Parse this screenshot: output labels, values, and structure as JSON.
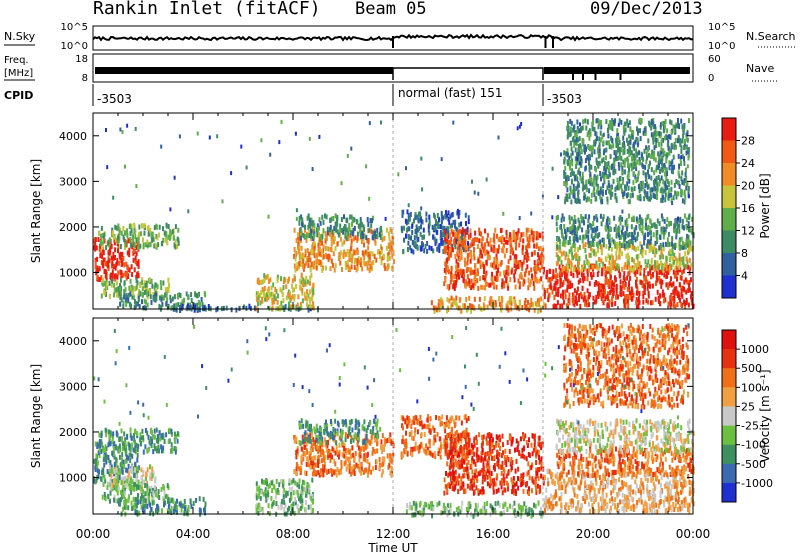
{
  "header": {
    "title": "Rankin Inlet (fitACF)",
    "beam": "Beam 05",
    "date": "09/Dec/2013"
  },
  "strip_nsky": {
    "left_label": "N.Sky",
    "left_ticks": [
      "10^5",
      "10^0"
    ],
    "right_ticks": [
      "10^5",
      "10^0"
    ],
    "right_label": "N.Search"
  },
  "strip_freq": {
    "left_label": "Freq.",
    "left_unit": "[MHz]",
    "left_ticks": [
      "8",
      "18"
    ],
    "right_ticks": [
      "60",
      "0"
    ],
    "right_label": "Nave"
  },
  "cpid": {
    "label": "CPID",
    "segments": [
      "-3503",
      "normal (fast) 151",
      "-3503"
    ],
    "segment_hours": [
      [
        0,
        12
      ],
      [
        12,
        18
      ],
      [
        18,
        24
      ]
    ]
  },
  "colors": {
    "power": [
      "#2030d0",
      "#3060a0",
      "#3e8a64",
      "#5fae4a",
      "#c6c43a",
      "#f08c26",
      "#f05a14",
      "#e81c10"
    ],
    "velocity": [
      "#2030d0",
      "#3a6ab0",
      "#3f9060",
      "#6cc040",
      "#c8c8c8",
      "#f0a040",
      "#f07018",
      "#e83010",
      "#e01010"
    ]
  },
  "chart_data": [
    {
      "type": "heatmap",
      "name": "Power",
      "xlabel": "",
      "ylabel": "Slant Range [km]",
      "xlim": [
        0,
        24
      ],
      "ylim": [
        200,
        4500
      ],
      "x_ticks": [
        "00:00",
        "04:00",
        "08:00",
        "12:00",
        "16:00",
        "20:00",
        "00:00"
      ],
      "y_ticks": [
        1000,
        2000,
        3000,
        4000
      ],
      "colorbar": {
        "label": "Power [dB]",
        "ticks": [
          "4",
          "8",
          "12",
          "16",
          "20",
          "24",
          "28"
        ]
      },
      "regions": [
        {
          "t0": 0.0,
          "t1": 1.8,
          "r0": 900,
          "r1": 1800,
          "level": 7
        },
        {
          "t0": 0.2,
          "t1": 3.4,
          "r0": 1600,
          "r1": 2100,
          "level": 3
        },
        {
          "t0": 0.3,
          "t1": 3.0,
          "r0": 500,
          "r1": 900,
          "level": 3
        },
        {
          "t0": 1.0,
          "t1": 4.5,
          "r0": 250,
          "r1": 600,
          "level": 2
        },
        {
          "t0": 3.0,
          "t1": 9.0,
          "r0": 220,
          "r1": 320,
          "level": 1
        },
        {
          "t0": 6.5,
          "t1": 8.8,
          "r0": 250,
          "r1": 1000,
          "level": 4
        },
        {
          "t0": 8.0,
          "t1": 12.0,
          "r0": 1100,
          "r1": 2000,
          "level": 5
        },
        {
          "t0": 8.2,
          "t1": 11.5,
          "r0": 1800,
          "r1": 2300,
          "level": 2
        },
        {
          "t0": 12.3,
          "t1": 15.0,
          "r0": 1500,
          "r1": 2400,
          "level": 1
        },
        {
          "t0": 14.0,
          "t1": 18.0,
          "r0": 700,
          "r1": 2000,
          "level": 6
        },
        {
          "t0": 13.5,
          "t1": 18.0,
          "r0": 200,
          "r1": 500,
          "level": 5
        },
        {
          "t0": 18.0,
          "t1": 24.0,
          "r0": 300,
          "r1": 1200,
          "level": 7
        },
        {
          "t0": 18.5,
          "t1": 24.0,
          "r0": 1100,
          "r1": 1700,
          "level": 4
        },
        {
          "t0": 18.5,
          "t1": 24.0,
          "r0": 1600,
          "r1": 2300,
          "level": 2
        },
        {
          "t0": 18.8,
          "t1": 23.8,
          "r0": 2600,
          "r1": 4400,
          "level": 2
        }
      ]
    },
    {
      "type": "heatmap",
      "name": "Velocity",
      "xlabel": "Time UT",
      "ylabel": "Slant Range [km]",
      "xlim": [
        0,
        24
      ],
      "ylim": [
        200,
        4500
      ],
      "x_ticks": [
        "00:00",
        "04:00",
        "08:00",
        "12:00",
        "16:00",
        "20:00",
        "00:00"
      ],
      "y_ticks": [
        1000,
        2000,
        3000,
        4000
      ],
      "colorbar": {
        "label": "Velocity [m s⁻¹]",
        "ticks": [
          "1000",
          "500",
          "100",
          "25",
          "-25",
          "-100",
          "-500",
          "-1000"
        ]
      },
      "regions": [
        {
          "t0": 0.0,
          "t1": 1.8,
          "r0": 900,
          "r1": 1800,
          "level": 2
        },
        {
          "t0": 0.2,
          "t1": 3.4,
          "r0": 1600,
          "r1": 2100,
          "level": 2
        },
        {
          "t0": 0.6,
          "t1": 2.5,
          "r0": 800,
          "r1": 1300,
          "level": 4
        },
        {
          "t0": 0.3,
          "t1": 3.0,
          "r0": 500,
          "r1": 900,
          "level": 3
        },
        {
          "t0": 1.0,
          "t1": 4.5,
          "r0": 250,
          "r1": 600,
          "level": 2
        },
        {
          "t0": 6.5,
          "t1": 8.8,
          "r0": 250,
          "r1": 1000,
          "level": 3
        },
        {
          "t0": 8.0,
          "t1": 12.0,
          "r0": 1100,
          "r1": 2000,
          "level": 6
        },
        {
          "t0": 8.2,
          "t1": 11.5,
          "r0": 1800,
          "r1": 2300,
          "level": 2
        },
        {
          "t0": 12.3,
          "t1": 15.0,
          "r0": 1500,
          "r1": 2400,
          "level": 6
        },
        {
          "t0": 14.0,
          "t1": 18.0,
          "r0": 700,
          "r1": 2000,
          "level": 7
        },
        {
          "t0": 12.5,
          "t1": 18.0,
          "r0": 200,
          "r1": 500,
          "level": 3
        },
        {
          "t0": 18.0,
          "t1": 24.0,
          "r0": 300,
          "r1": 1200,
          "level": 5
        },
        {
          "t0": 18.5,
          "t1": 24.0,
          "r0": 1100,
          "r1": 1700,
          "level": 6
        },
        {
          "t0": 18.5,
          "t1": 24.0,
          "r0": 1600,
          "r1": 2300,
          "level": 4
        },
        {
          "t0": 18.8,
          "t1": 23.8,
          "r0": 2600,
          "r1": 4400,
          "level": 6
        }
      ]
    }
  ]
}
